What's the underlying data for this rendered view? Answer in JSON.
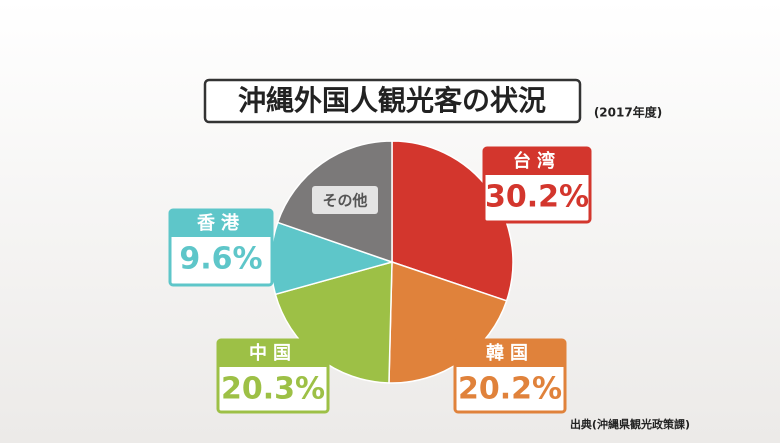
{
  "chart_data": {
    "type": "pie",
    "title": "沖縄外国人観光客の状況",
    "subtitle": "(2017年度)",
    "source": "出典(沖縄県観光政策課)",
    "categories": [
      "台湾",
      "韓国",
      "中国",
      "香港",
      "その他"
    ],
    "values": [
      30.2,
      20.2,
      20.3,
      9.6,
      19.7
    ],
    "value_labels": [
      "30.2%",
      "20.2%",
      "20.3%",
      "9.6%",
      null
    ],
    "colors": [
      "#d3362d",
      "#e0823b",
      "#9dc046",
      "#5ec6c9",
      "#7b7979"
    ]
  }
}
